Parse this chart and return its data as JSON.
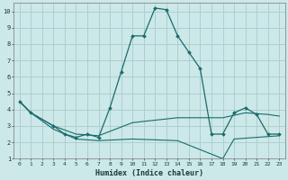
{
  "xlabel": "Humidex (Indice chaleur)",
  "bg_color": "#cce8e8",
  "grid_color": "#aacccc",
  "line_color": "#1a6b6b",
  "xlim": [
    -0.5,
    23.5
  ],
  "ylim": [
    1,
    10.5
  ],
  "xticks": [
    0,
    1,
    2,
    3,
    4,
    5,
    6,
    7,
    8,
    9,
    10,
    11,
    12,
    13,
    14,
    15,
    16,
    17,
    18,
    19,
    20,
    21,
    22,
    23
  ],
  "yticks": [
    1,
    2,
    3,
    4,
    5,
    6,
    7,
    8,
    9,
    10
  ],
  "line1_x": [
    0,
    1,
    3,
    4,
    5,
    6,
    7,
    8,
    9,
    10,
    11,
    12,
    13,
    14,
    15,
    16,
    17,
    18,
    19,
    20,
    21,
    22,
    23
  ],
  "line1_y": [
    4.5,
    3.8,
    3.0,
    2.5,
    2.3,
    2.5,
    2.3,
    4.1,
    6.3,
    8.5,
    8.5,
    10.2,
    10.1,
    8.5,
    7.5,
    6.5,
    2.5,
    2.5,
    3.8,
    4.1,
    3.7,
    2.5,
    2.5
  ],
  "line2_x": [
    0,
    1,
    3,
    5,
    7,
    10,
    14,
    18,
    20,
    22,
    23
  ],
  "line2_y": [
    4.5,
    3.8,
    3.0,
    2.5,
    2.4,
    3.2,
    3.5,
    3.5,
    3.8,
    3.7,
    3.6
  ],
  "line3_x": [
    0,
    1,
    3,
    5,
    7,
    10,
    14,
    18,
    19,
    23
  ],
  "line3_y": [
    4.5,
    3.8,
    2.8,
    2.2,
    2.1,
    2.2,
    2.1,
    1.0,
    2.2,
    2.4
  ],
  "xlabel_fontsize": 6,
  "tick_fontsize": 4.5
}
